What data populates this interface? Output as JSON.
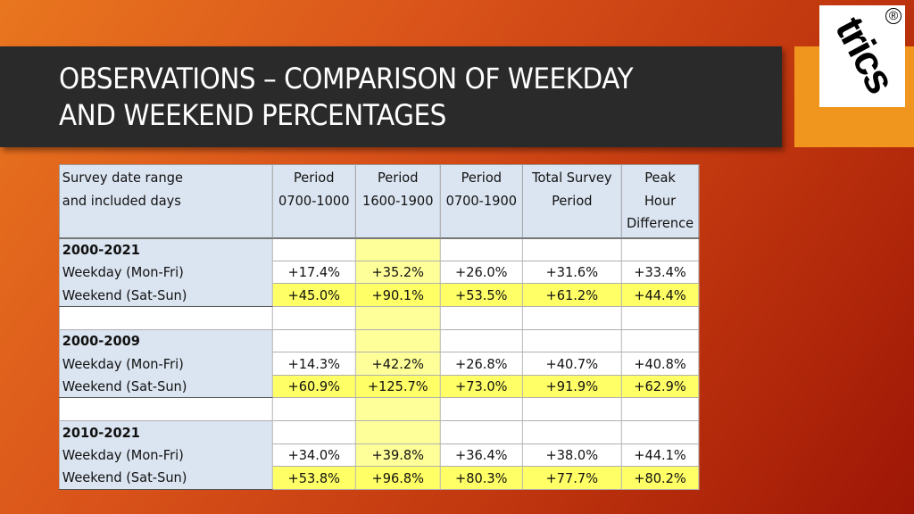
{
  "title": {
    "line1": "OBSERVATIONS – COMPARISON OF WEEKDAY",
    "line2": "AND WEEKEND PERCENTAGES"
  },
  "logo": {
    "text": "trics",
    "mark": "®"
  },
  "colors": {
    "highlight": "#ffff99",
    "weekend_highlight": "#ffff66",
    "header_bg": "#dbe5f1",
    "title_bar": "#2a2a2a"
  },
  "table": {
    "headers": [
      {
        "line1": "Survey date range",
        "line2": "and included days"
      },
      {
        "line1": "Period",
        "line2": "0700-1000"
      },
      {
        "line1": "Period",
        "line2": "1600-1900"
      },
      {
        "line1": "Period",
        "line2": "0700-1900"
      },
      {
        "line1": "Total Survey",
        "line2": "Period"
      },
      {
        "line1": "Peak",
        "line2": "Hour",
        "line3": "Difference"
      }
    ],
    "groups": [
      {
        "range": "2000-2021",
        "weekday_label": "Weekday (Mon-Fri)",
        "weekend_label": "Weekend (Sat-Sun)",
        "weekday": [
          "+17.4%",
          "+35.2%",
          "+26.0%",
          "+31.6%",
          "+33.4%"
        ],
        "weekend": [
          "+45.0%",
          "+90.1%",
          "+53.5%",
          "+61.2%",
          "+44.4%"
        ]
      },
      {
        "range": "2000-2009",
        "weekday_label": "Weekday (Mon-Fri)",
        "weekend_label": "Weekend (Sat-Sun)",
        "weekday": [
          "+14.3%",
          "+42.2%",
          "+26.8%",
          "+40.7%",
          "+40.8%"
        ],
        "weekend": [
          "+60.9%",
          "+125.7%",
          "+73.0%",
          "+91.9%",
          "+62.9%"
        ]
      },
      {
        "range": "2010-2021",
        "weekday_label": "Weekday (Mon-Fri)",
        "weekend_label": "Weekend (Sat-Sun)",
        "weekday": [
          "+34.0%",
          "+39.8%",
          "+36.4%",
          "+38.0%",
          "+44.1%"
        ],
        "weekend": [
          "+53.8%",
          "+96.8%",
          "+80.3%",
          "+77.7%",
          "+80.2%"
        ]
      }
    ]
  }
}
